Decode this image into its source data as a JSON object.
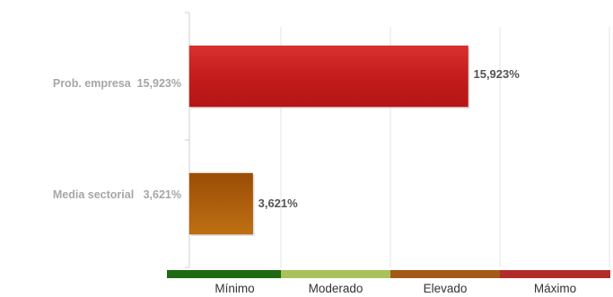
{
  "chart_data": {
    "type": "bar",
    "orientation": "horizontal",
    "categories": [
      "Prob. empresa",
      "Media sectorial"
    ],
    "category_labels": [
      "Prob. empresa  15,923%",
      "Media sectorial   3,621%"
    ],
    "values": [
      15.923,
      3.621
    ],
    "value_labels": [
      "15,923%",
      "3,621%"
    ],
    "bar_colors": [
      "#c8201f",
      "#a85a0a"
    ],
    "grid": true,
    "risk_scale": [
      {
        "label": "Mínimo",
        "color": "#1e6a12"
      },
      {
        "label": "Moderado",
        "color": "#a9c15a"
      },
      {
        "label": "Elevado",
        "color": "#a35a16"
      },
      {
        "label": "Máximo",
        "color": "#b22a2a"
      }
    ]
  }
}
